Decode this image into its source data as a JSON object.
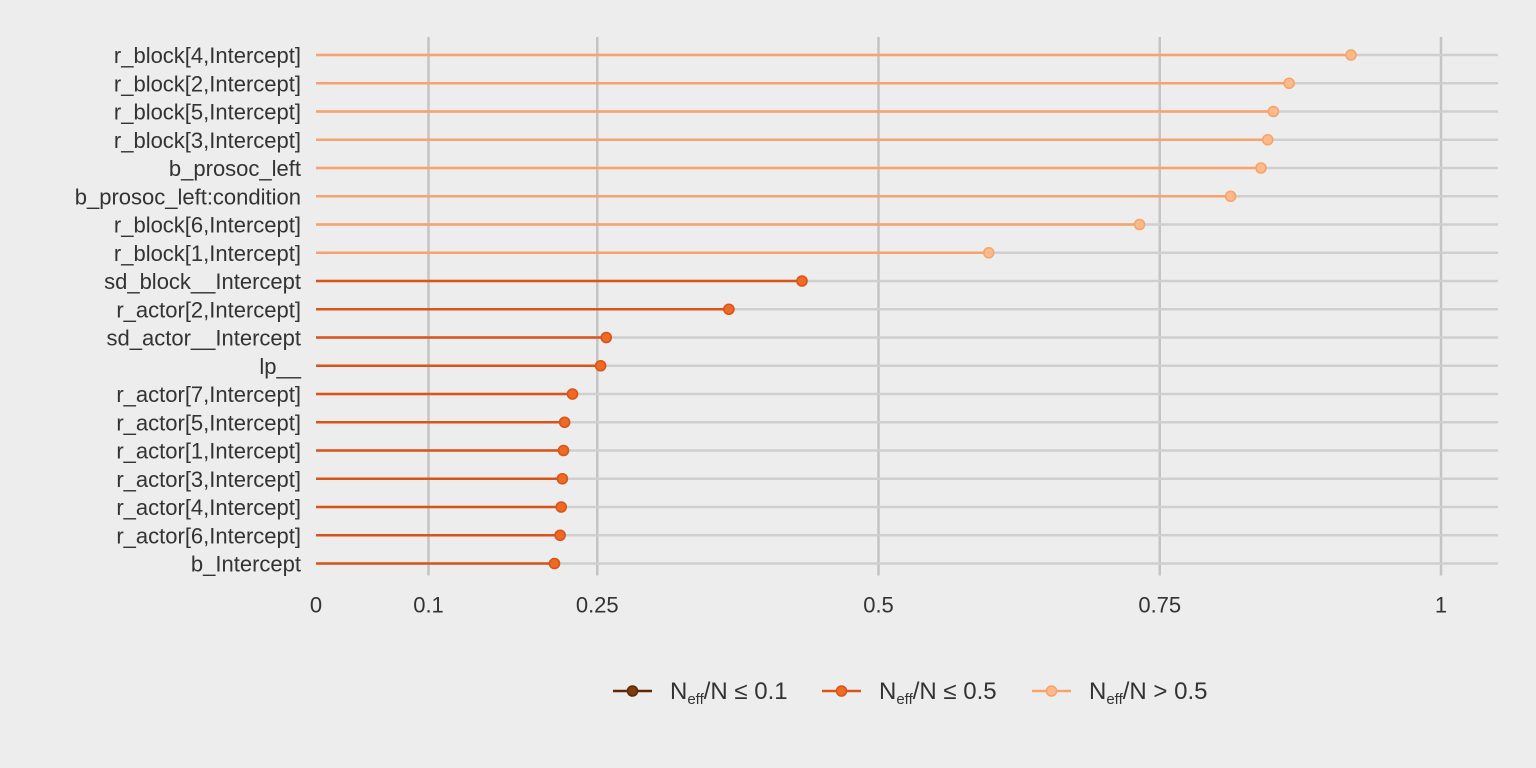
{
  "chart_data": {
    "type": "scatter",
    "xlim": [
      0,
      1.05
    ],
    "x_ticks": [
      0,
      0.1,
      0.25,
      0.5,
      0.75,
      1
    ],
    "x_tick_labels": [
      "0",
      "0.1",
      "0.25",
      "0.5",
      "0.75",
      "1"
    ],
    "categories": [
      "r_block[4,Intercept]",
      "r_block[2,Intercept]",
      "r_block[5,Intercept]",
      "r_block[3,Intercept]",
      "b_prosoc_left",
      "b_prosoc_left:condition",
      "r_block[6,Intercept]",
      "r_block[1,Intercept]",
      "sd_block__Intercept",
      "r_actor[2,Intercept]",
      "sd_actor__Intercept",
      "lp__",
      "r_actor[7,Intercept]",
      "r_actor[5,Intercept]",
      "r_actor[1,Intercept]",
      "r_actor[3,Intercept]",
      "r_actor[4,Intercept]",
      "r_actor[6,Intercept]",
      "b_Intercept"
    ],
    "values": [
      0.92,
      0.865,
      0.851,
      0.846,
      0.84,
      0.813,
      0.732,
      0.598,
      0.432,
      0.367,
      0.258,
      0.253,
      0.228,
      0.221,
      0.22,
      0.219,
      0.218,
      0.217,
      0.212
    ],
    "groups": [
      "high",
      "high",
      "high",
      "high",
      "high",
      "high",
      "high",
      "high",
      "mid",
      "mid",
      "mid",
      "mid",
      "mid",
      "mid",
      "mid",
      "mid",
      "mid",
      "mid",
      "mid"
    ],
    "grid": true,
    "legend_position": "bottom",
    "legend": [
      {
        "key": "low",
        "main": "N",
        "sub": "eff",
        "rest": "/N ≤ 0.1",
        "color": "#7f3b08"
      },
      {
        "key": "mid",
        "main": "N",
        "sub": "eff",
        "rest": "/N ≤ 0.5",
        "color": "#e6611d"
      },
      {
        "key": "high",
        "main": "N",
        "sub": "eff",
        "rest": "/N > 0.5",
        "color": "#fdb07a"
      }
    ]
  },
  "colors": {
    "low_fill": "#7f3b08",
    "low_line": "#5a2a06",
    "mid_fill": "#ef6a24",
    "mid_line": "#d9541a",
    "high_fill": "#fdbb8c",
    "high_line": "#f8a36b",
    "grid": "#cfcfcf",
    "background": "#ededed"
  }
}
